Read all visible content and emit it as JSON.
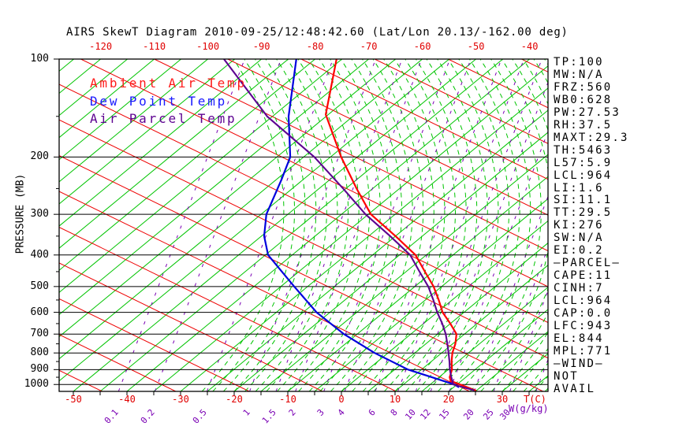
{
  "title": "AIRS SkewT Diagram 2010-09-25/12:48:42.60 (Lat/Lon 20.13/-162.00 deg)",
  "legend": [
    {
      "label": "Ambient Air Temp",
      "color": "#ff1a1a"
    },
    {
      "label": "Dew Point Temp",
      "color": "#1a1aff"
    },
    {
      "label": "Air Parcel Temp",
      "color": "#5c0090"
    }
  ],
  "axes": {
    "pressure_label": "PRESSURE (MB)",
    "temp_axis_label": "T(C)",
    "mixing_axis_label": "W(g/kg)",
    "pressure_ticks_mb": [
      100,
      200,
      300,
      400,
      500,
      600,
      700,
      800,
      900,
      1000
    ],
    "top_temp_labels_c": [
      -120,
      -110,
      -100,
      -90,
      -80,
      -70,
      -60,
      -50,
      -40
    ],
    "bottom_temp_labels_c": [
      -50,
      -40,
      -30,
      -20,
      -10,
      0,
      10,
      20,
      30
    ],
    "mixing_ratio_labels": [
      "0.1",
      "0.2",
      "0.5",
      "1",
      "1.5",
      "2",
      "3",
      "4",
      "6",
      "8",
      "10",
      "12",
      "15",
      "20",
      "25",
      "30"
    ]
  },
  "stats_panel": {
    "lines": [
      "TP:100",
      "MW:N/A",
      "FRZ:560",
      "WB0:628",
      "PW:27.53",
      "RH:37.5",
      "MAXT:29.3",
      "TH:5463",
      "L57:5.9",
      "LCL:964",
      "LI:1.6",
      "SI:11.1",
      "TT:29.5",
      "KI:276",
      "SW:N/A",
      "EI:0.2",
      "—PARCEL—",
      "CAPE:11",
      "CINH:7",
      "LCL:964",
      "CAP:0.0",
      "LFC:943",
      "EL:844",
      "MPL:771",
      "—WIND—",
      "NOT",
      "AVAIL"
    ]
  },
  "chart_data": {
    "type": "line",
    "subtype": "skew-t-log-p",
    "title": "AIRS SkewT Diagram 2010-09-25/12:48:42.60 (Lat/Lon 20.13/-162.00 deg)",
    "xlabel": "T(C)",
    "ylabel": "PRESSURE (MB)",
    "temp_axis_range_c": [
      -50,
      35
    ],
    "pressure_range_mb": [
      100,
      1050
    ],
    "log_pressure_axis": true,
    "skewed_isotherms": true,
    "series": [
      {
        "name": "Ambient Air Temp",
        "color": "#ff0000",
        "width": 2.2,
        "points_p_t": [
          [
            100,
            -76
          ],
          [
            148,
            -65.5
          ],
          [
            200,
            -53
          ],
          [
            250,
            -43
          ],
          [
            300,
            -34.5
          ],
          [
            350,
            -25
          ],
          [
            400,
            -17
          ],
          [
            450,
            -11.5
          ],
          [
            500,
            -6.5
          ],
          [
            550,
            -2.5
          ],
          [
            600,
            1
          ],
          [
            650,
            5
          ],
          [
            700,
            8.5
          ],
          [
            750,
            10.5
          ],
          [
            800,
            12
          ],
          [
            850,
            13.8
          ],
          [
            900,
            15.7
          ],
          [
            950,
            17
          ],
          [
            975,
            18
          ],
          [
            1045,
            25
          ]
        ]
      },
      {
        "name": "Dew Point Temp",
        "color": "#0000dd",
        "width": 2.2,
        "points_p_t": [
          [
            100,
            -83.5
          ],
          [
            150,
            -72
          ],
          [
            200,
            -62.5
          ],
          [
            235,
            -59
          ],
          [
            300,
            -54
          ],
          [
            350,
            -49.5
          ],
          [
            400,
            -44.5
          ],
          [
            500,
            -32.5
          ],
          [
            600,
            -22.5
          ],
          [
            700,
            -12.5
          ],
          [
            800,
            -2.5
          ],
          [
            900,
            7.5
          ],
          [
            1000,
            19.5
          ],
          [
            1020,
            21
          ]
        ]
      },
      {
        "name": "Air Parcel Temp",
        "color": "#5c0090",
        "width": 2.1,
        "points_p_t": [
          [
            100,
            -97
          ],
          [
            150,
            -76
          ],
          [
            200,
            -58
          ],
          [
            250,
            -45.5
          ],
          [
            300,
            -35.5
          ],
          [
            350,
            -26
          ],
          [
            400,
            -18
          ],
          [
            450,
            -12.5
          ],
          [
            500,
            -7.5
          ],
          [
            550,
            -3.5
          ],
          [
            600,
            0
          ],
          [
            650,
            3.5
          ],
          [
            700,
            6.5
          ],
          [
            750,
            9
          ],
          [
            800,
            11.3
          ],
          [
            850,
            13.4
          ],
          [
            900,
            15.3
          ],
          [
            950,
            17.3
          ],
          [
            1000,
            19.3
          ],
          [
            1042,
            24.5
          ]
        ]
      }
    ],
    "grid": {
      "isobars_mb": [
        100,
        200,
        300,
        400,
        500,
        600,
        700,
        800,
        900,
        1000
      ],
      "isotherms_c": {
        "min": -125,
        "max": 35,
        "step": 5,
        "color": "#00c400"
      },
      "dry_adiabats": {
        "color": "#ee0000",
        "surface_temps_c": [
          -44.6,
          -30.9,
          -17.2,
          -3.5,
          10.2,
          23.9,
          37.6,
          51.3,
          64.9,
          78.6,
          92.3,
          106.0,
          119.7,
          133.4,
          147.1,
          160.8
        ]
      },
      "moist_adiabats": {
        "color": "#00c400",
        "dashed": true,
        "surface_temps_c": {
          "min": -26,
          "max": 76,
          "step": 2
        }
      },
      "mixing_ratio_lines": {
        "color": "#7a00b4",
        "dashed": true,
        "values_gkg": [
          0.1,
          0.2,
          0.5,
          1,
          1.5,
          2,
          3,
          4,
          6,
          8,
          10,
          12,
          15,
          20,
          25,
          30,
          40,
          50,
          60,
          80
        ]
      }
    }
  }
}
